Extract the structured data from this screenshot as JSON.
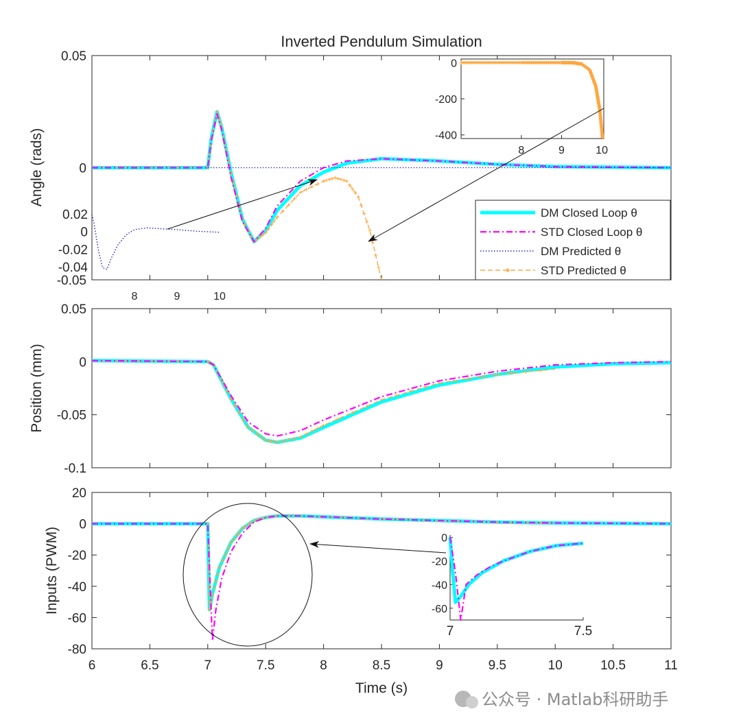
{
  "chart_data": {
    "title": "Inverted Pendulum Simulation",
    "type": "line",
    "xlabel": "Time (s)",
    "xlim": [
      6,
      11
    ],
    "xticks": [
      "6",
      "6.5",
      "7",
      "7.5",
      "8",
      "8.5",
      "9",
      "9.5",
      "10",
      "10.5",
      "11"
    ],
    "colors": {
      "dm_closed": "#00ffff",
      "std_closed": "#ff00ff",
      "dm_pred": "#1f1fcf",
      "std_pred": "#ffa640",
      "gray": "#9aa0a6"
    },
    "legend": [
      {
        "key": "dm_closed",
        "label": "DM Closed Loop θ"
      },
      {
        "key": "std_closed",
        "label": "STD Closed Loop θ"
      },
      {
        "key": "dm_pred",
        "label": "DM Predicted θ"
      },
      {
        "key": "std_pred",
        "label": "STD Predicted θ"
      }
    ],
    "panels": [
      {
        "id": "angle",
        "ylabel": "Angle (rads)",
        "ylim": [
          -0.05,
          0.05
        ],
        "yticks": [
          "0.05",
          "0",
          "-0.05"
        ],
        "series": {
          "dm_closed": [
            [
              6,
              0
            ],
            [
              7,
              0
            ],
            [
              7.03,
              0.013
            ],
            [
              7.08,
              0.025
            ],
            [
              7.12,
              0.018
            ],
            [
              7.2,
              -0.002
            ],
            [
              7.3,
              -0.023
            ],
            [
              7.4,
              -0.033
            ],
            [
              7.5,
              -0.028
            ],
            [
              7.6,
              -0.019
            ],
            [
              7.8,
              -0.008
            ],
            [
              8,
              -0.002
            ],
            [
              8.2,
              0.002
            ],
            [
              8.5,
              0.004
            ],
            [
              9,
              0.003
            ],
            [
              9.5,
              0.0015
            ],
            [
              10,
              0.0005
            ],
            [
              11,
              0.0
            ]
          ],
          "std_closed": [
            [
              6,
              0
            ],
            [
              7,
              0
            ],
            [
              7.03,
              0.012
            ],
            [
              7.08,
              0.024
            ],
            [
              7.12,
              0.017
            ],
            [
              7.2,
              -0.004
            ],
            [
              7.3,
              -0.024
            ],
            [
              7.4,
              -0.033
            ],
            [
              7.5,
              -0.027
            ],
            [
              7.6,
              -0.017
            ],
            [
              7.8,
              -0.006
            ],
            [
              8,
              0
            ],
            [
              8.2,
              0.003
            ],
            [
              8.5,
              0.004
            ],
            [
              9,
              0.003
            ],
            [
              9.5,
              0.0015
            ],
            [
              10,
              0.0005
            ],
            [
              11,
              0.0
            ]
          ],
          "std_pred": [
            [
              6,
              0
            ],
            [
              7,
              0
            ],
            [
              7.03,
              0.013
            ],
            [
              7.08,
              0.025
            ],
            [
              7.12,
              0.018
            ],
            [
              7.2,
              -0.002
            ],
            [
              7.3,
              -0.023
            ],
            [
              7.4,
              -0.033
            ],
            [
              7.5,
              -0.029
            ],
            [
              7.6,
              -0.022
            ],
            [
              7.8,
              -0.011
            ],
            [
              8,
              -0.006
            ],
            [
              8.1,
              -0.0045
            ],
            [
              8.2,
              -0.006
            ],
            [
              8.3,
              -0.013
            ],
            [
              8.4,
              -0.028
            ],
            [
              8.5,
              -0.05
            ]
          ],
          "dm_pred": [
            [
              7,
              0
            ],
            [
              8,
              0
            ],
            [
              9,
              0
            ],
            [
              10,
              0
            ],
            [
              11,
              0
            ]
          ]
        },
        "inset": {
          "xlim": [
            6.5,
            10.05
          ],
          "ylim": [
            -420,
            20
          ],
          "xticks": [
            "8",
            "9",
            "10"
          ],
          "yticks": [
            "0",
            "-200",
            "-400"
          ],
          "series": [
            [
              6.5,
              0
            ],
            [
              8,
              0
            ],
            [
              9,
              0
            ],
            [
              9.3,
              -1
            ],
            [
              9.5,
              -8
            ],
            [
              9.7,
              -40
            ],
            [
              9.85,
              -130
            ],
            [
              9.95,
              -260
            ],
            [
              10.02,
              -420
            ]
          ]
        },
        "dm_pred_inset": {
          "xlim": [
            7,
            10
          ],
          "ylim": [
            -0.05,
            0.03
          ],
          "xticks": [
            "8",
            "9",
            "10"
          ],
          "yticks": [
            "0.02",
            "0",
            "-0.02",
            "-0.04"
          ],
          "series": [
            [
              7,
              0.02
            ],
            [
              7.05,
              0.01
            ],
            [
              7.15,
              -0.02
            ],
            [
              7.25,
              -0.04
            ],
            [
              7.35,
              -0.042
            ],
            [
              7.45,
              -0.03
            ],
            [
              7.6,
              -0.015
            ],
            [
              7.8,
              -0.003
            ],
            [
              8,
              0.003
            ],
            [
              8.3,
              0.005
            ],
            [
              8.6,
              0.004
            ],
            [
              9,
              0.003
            ],
            [
              9.5,
              0.001
            ],
            [
              10,
              0.0
            ]
          ]
        }
      },
      {
        "id": "position",
        "ylabel": "Position (mm)",
        "ylim": [
          -0.1,
          0.05
        ],
        "yticks": [
          "0.05",
          "0",
          "-0.05",
          "-0.1"
        ],
        "series": {
          "dm_closed": [
            [
              6,
              0.001
            ],
            [
              7,
              0.0
            ],
            [
              7.05,
              -0.003
            ],
            [
              7.2,
              -0.035
            ],
            [
              7.35,
              -0.062
            ],
            [
              7.5,
              -0.074
            ],
            [
              7.6,
              -0.076
            ],
            [
              7.8,
              -0.072
            ],
            [
              8,
              -0.062
            ],
            [
              8.5,
              -0.038
            ],
            [
              9,
              -0.022
            ],
            [
              9.5,
              -0.012
            ],
            [
              10,
              -0.005
            ],
            [
              10.5,
              -0.002
            ],
            [
              11,
              -0.001
            ]
          ],
          "std_closed": [
            [
              6,
              0.001
            ],
            [
              7,
              0.0
            ],
            [
              7.05,
              -0.003
            ],
            [
              7.2,
              -0.032
            ],
            [
              7.35,
              -0.057
            ],
            [
              7.5,
              -0.068
            ],
            [
              7.6,
              -0.07
            ],
            [
              7.8,
              -0.065
            ],
            [
              8,
              -0.055
            ],
            [
              8.5,
              -0.033
            ],
            [
              9,
              -0.018
            ],
            [
              9.5,
              -0.009
            ],
            [
              10,
              -0.003
            ],
            [
              10.5,
              -0.001
            ],
            [
              11,
              0.0
            ]
          ],
          "std_pred": [
            [
              6,
              0.001
            ],
            [
              7,
              0.0
            ],
            [
              7.05,
              -0.003
            ],
            [
              7.2,
              -0.035
            ],
            [
              7.35,
              -0.062
            ],
            [
              7.5,
              -0.074
            ],
            [
              7.6,
              -0.076
            ],
            [
              7.8,
              -0.071
            ],
            [
              8,
              -0.06
            ],
            [
              8.5,
              -0.036
            ],
            [
              9,
              -0.02
            ],
            [
              9.5,
              -0.012
            ],
            [
              10,
              -0.007
            ]
          ],
          "dm_pred": [
            [
              6,
              0.001
            ],
            [
              7,
              0.0
            ],
            [
              7.05,
              -0.003
            ],
            [
              7.2,
              -0.035
            ],
            [
              7.35,
              -0.062
            ],
            [
              7.5,
              -0.074
            ],
            [
              7.6,
              -0.076
            ],
            [
              7.8,
              -0.072
            ],
            [
              8,
              -0.062
            ],
            [
              8.5,
              -0.038
            ],
            [
              9,
              -0.022
            ],
            [
              9.5,
              -0.012
            ],
            [
              10,
              -0.006
            ]
          ]
        }
      },
      {
        "id": "inputs",
        "ylabel": "Inputs (PWM)",
        "ylim": [
          -80,
          20
        ],
        "yticks": [
          "20",
          "0",
          "-20",
          "-40",
          "-60",
          "-80"
        ],
        "series": {
          "dm_closed": [
            [
              6,
              0
            ],
            [
              7,
              0
            ],
            [
              7.015,
              -55
            ],
            [
              7.04,
              -45
            ],
            [
              7.1,
              -28
            ],
            [
              7.2,
              -12
            ],
            [
              7.3,
              -3
            ],
            [
              7.4,
              2
            ],
            [
              7.5,
              4
            ],
            [
              7.6,
              5
            ],
            [
              7.8,
              5
            ],
            [
              8.5,
              3
            ],
            [
              9,
              2
            ],
            [
              9.5,
              1
            ],
            [
              10,
              0.5
            ],
            [
              11,
              0
            ]
          ],
          "std_closed": [
            [
              6,
              0
            ],
            [
              7,
              0
            ],
            [
              7.02,
              -38
            ],
            [
              7.04,
              -75
            ],
            [
              7.07,
              -55
            ],
            [
              7.12,
              -35
            ],
            [
              7.2,
              -18
            ],
            [
              7.3,
              -6
            ],
            [
              7.4,
              1
            ],
            [
              7.5,
              4
            ],
            [
              7.6,
              5
            ],
            [
              7.8,
              5
            ],
            [
              8.5,
              3
            ],
            [
              9,
              2
            ],
            [
              9.5,
              1
            ],
            [
              10,
              0.5
            ],
            [
              11,
              0
            ]
          ],
          "std_pred": [
            [
              7,
              0
            ],
            [
              7.015,
              -55
            ],
            [
              7.04,
              -45
            ],
            [
              7.1,
              -28
            ],
            [
              7.2,
              -12
            ],
            [
              7.3,
              -3
            ],
            [
              7.4,
              2
            ],
            [
              7.5,
              4
            ],
            [
              7.6,
              5
            ],
            [
              7.8,
              5
            ],
            [
              8.5,
              3
            ],
            [
              9,
              2
            ],
            [
              9.5,
              1
            ],
            [
              10,
              0.5
            ]
          ],
          "dm_pred": [
            [
              7,
              0
            ],
            [
              7.015,
              -55
            ],
            [
              7.04,
              -45
            ],
            [
              7.1,
              -28
            ],
            [
              7.2,
              -12
            ],
            [
              7.3,
              -3
            ],
            [
              7.4,
              2
            ],
            [
              7.5,
              4
            ],
            [
              7.6,
              5
            ],
            [
              7.8,
              5
            ],
            [
              8.5,
              3
            ],
            [
              9,
              2
            ],
            [
              9.5,
              1
            ],
            [
              10,
              0.5
            ]
          ]
        },
        "inset": {
          "xlim": [
            7,
            7.5
          ],
          "ylim": [
            -70,
            2
          ],
          "xticks": [
            "7",
            "7.5"
          ],
          "yticks": [
            "0",
            "-20",
            "-40",
            "-60"
          ],
          "dm": [
            [
              7,
              0
            ],
            [
              7.01,
              -30
            ],
            [
              7.02,
              -55
            ],
            [
              7.04,
              -50
            ],
            [
              7.07,
              -40
            ],
            [
              7.12,
              -30
            ],
            [
              7.2,
              -20
            ],
            [
              7.3,
              -12
            ],
            [
              7.4,
              -7
            ],
            [
              7.5,
              -5
            ]
          ],
          "std": [
            [
              7,
              0
            ],
            [
              7.02,
              -30
            ],
            [
              7.035,
              -60
            ],
            [
              7.04,
              -70
            ],
            [
              7.05,
              -55
            ],
            [
              7.06,
              -40
            ],
            [
              7.1,
              -32
            ],
            [
              7.15,
              -25
            ],
            [
              7.2,
              -20
            ],
            [
              7.3,
              -12
            ],
            [
              7.4,
              -7
            ],
            [
              7.5,
              -5
            ]
          ]
        }
      }
    ]
  },
  "watermark": "公众号 · Matlab科研助手"
}
